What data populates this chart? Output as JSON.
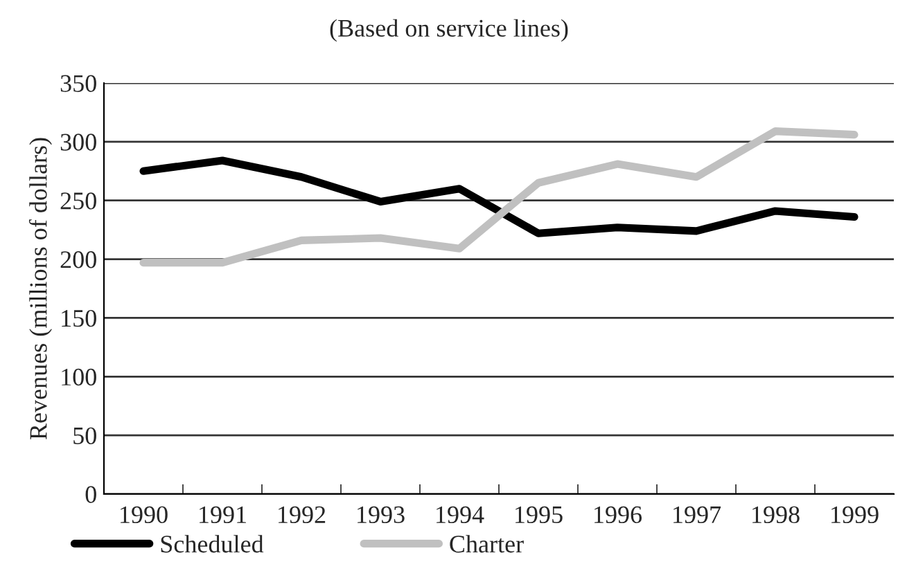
{
  "chart_data": {
    "type": "line",
    "subtitle": "(Based on service lines)",
    "ylabel": "Revenues (millions of dollars)",
    "categories": [
      "1990",
      "1991",
      "1992",
      "1993",
      "1994",
      "1995",
      "1996",
      "1997",
      "1998",
      "1999"
    ],
    "series": [
      {
        "name": "Scheduled",
        "color": "#000000",
        "values": [
          275,
          284,
          270,
          249,
          260,
          222,
          227,
          224,
          241,
          236
        ]
      },
      {
        "name": "Charter",
        "color": "#c0c0c0",
        "values": [
          197,
          197,
          216,
          218,
          209,
          265,
          281,
          270,
          309,
          306
        ]
      }
    ],
    "ylim": [
      0,
      350
    ],
    "yticks": [
      0,
      50,
      100,
      150,
      200,
      250,
      300,
      350
    ],
    "grid": "y",
    "legend": "bottom left",
    "marker": "none",
    "line_style": "solid"
  }
}
